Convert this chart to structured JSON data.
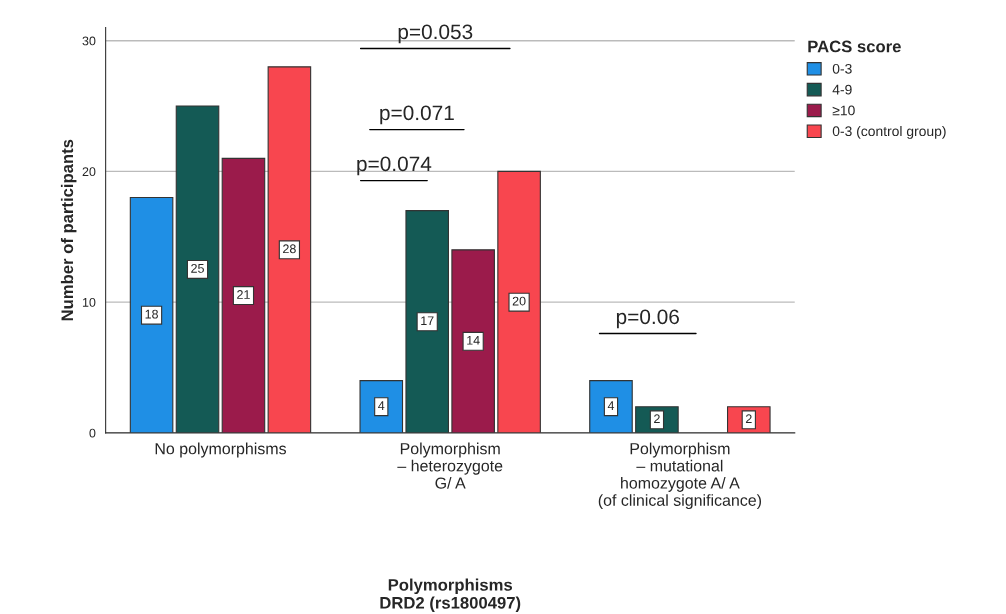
{
  "chart_data": {
    "type": "bar",
    "xlabel": "Polymorphisms\nDRD2 (rs1800497)",
    "ylabel": "Number of participants",
    "legend_title": "PACS score",
    "categories": [
      "No polymorphisms",
      "Polymorphism\n– heterozygote\nG/ A",
      "Polymorphism\n– mutational\nhomozygote A/ A\n(of clinical significance)"
    ],
    "series": [
      {
        "name": "0-3",
        "color": "#1f8fe5",
        "values": [
          18,
          4,
          4
        ]
      },
      {
        "name": "4-9",
        "color": "#145a55",
        "values": [
          25,
          17,
          2
        ]
      },
      {
        "name": "≥10",
        "color": "#9b1b4b",
        "values": [
          21,
          14,
          null
        ]
      },
      {
        "name": "0-3 (control group)",
        "color": "#f8464f",
        "values": [
          28,
          20,
          2
        ]
      }
    ],
    "ylim": [
      0,
      31
    ],
    "yticks": [
      0,
      10,
      20,
      30
    ],
    "grid": "y",
    "legend": "top right",
    "data_labels": true,
    "annotations": [
      "p=0.053",
      "p=0.071",
      "p=0.074",
      "p=0.06"
    ]
  }
}
